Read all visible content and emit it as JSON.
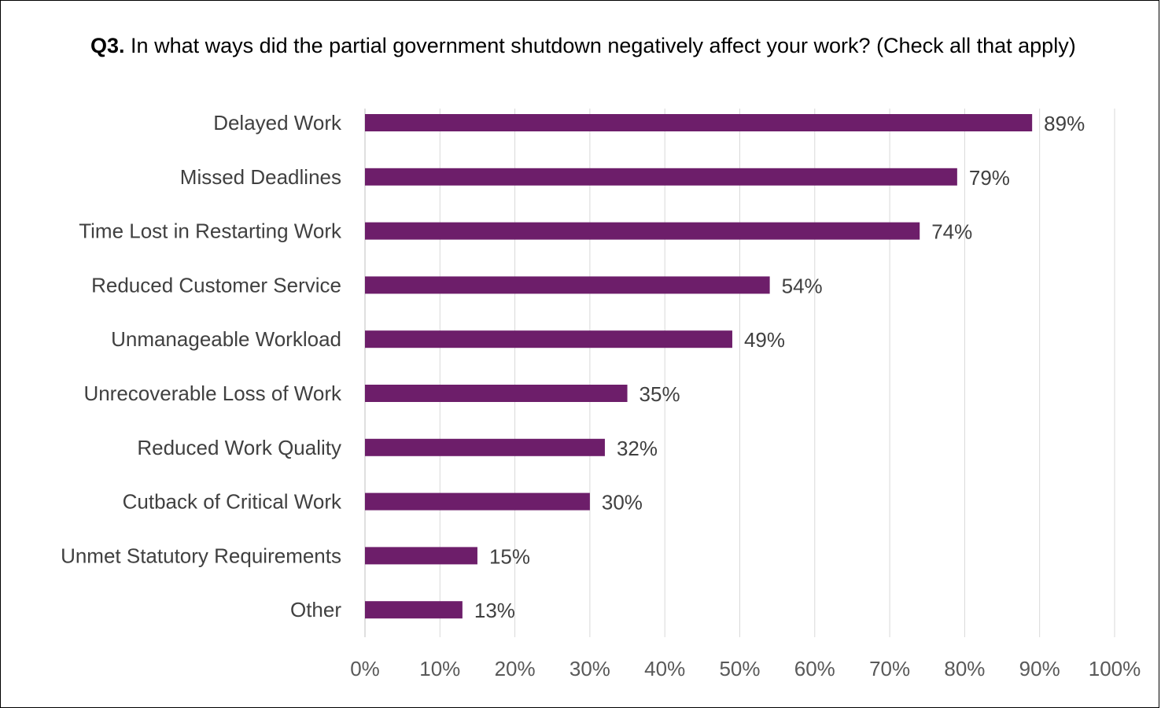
{
  "chart_data": {
    "type": "bar",
    "orientation": "horizontal",
    "title_prefix": "Q3.",
    "title": "In what ways did the partial government shutdown negatively affect your work?  (Check all that apply)",
    "categories": [
      "Delayed Work",
      "Missed Deadlines",
      "Time Lost in Restarting Work",
      "Reduced Customer Service",
      "Unmanageable Workload",
      "Unrecoverable Loss of Work",
      "Reduced Work Quality",
      "Cutback of Critical Work",
      "Unmet Statutory Requirements",
      "Other"
    ],
    "values": [
      89,
      79,
      74,
      54,
      49,
      35,
      32,
      30,
      15,
      13
    ],
    "data_labels": [
      "89%",
      "79%",
      "74%",
      "54%",
      "49%",
      "35%",
      "32%",
      "30%",
      "15%",
      "13%"
    ],
    "xlim": [
      0,
      100
    ],
    "x_ticks": [
      "0%",
      "10%",
      "20%",
      "30%",
      "40%",
      "50%",
      "60%",
      "70%",
      "80%",
      "90%",
      "100%"
    ],
    "grid": "vertical",
    "bar_color": "#6D1E6A",
    "xlabel": "",
    "ylabel": ""
  }
}
